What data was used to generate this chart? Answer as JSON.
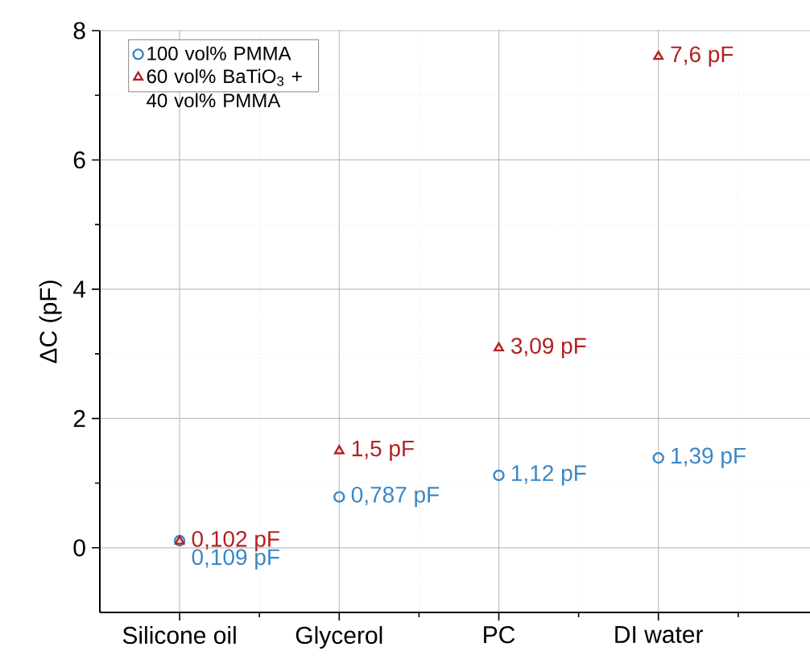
{
  "chart_data": {
    "type": "scatter",
    "ylabel": "ΔC (pF)",
    "categories": [
      "Silicone oil",
      "Glycerol",
      "PC",
      "DI water"
    ],
    "series": [
      {
        "name": "100 vol% PMMA",
        "color": "#3a87c8",
        "marker": "circle",
        "values": [
          0.109,
          0.787,
          1.12,
          1.39
        ],
        "value_labels": [
          "0,109 pF",
          "0,787 pF",
          "1,12 pF",
          "1,39 pF"
        ]
      },
      {
        "name": "60 vol% BaTiO$_{3}$ + 40 vol% PMMA",
        "color": "#b22222",
        "marker": "triangle",
        "values": [
          0.102,
          1.5,
          3.09,
          7.6
        ],
        "value_labels": [
          "0,102 pF",
          "1,5 pF",
          "3,09 pF",
          "7,6 pF"
        ]
      }
    ],
    "ylim": [
      -1,
      8
    ],
    "yticks": [
      0,
      2,
      4,
      6,
      8
    ],
    "grid": true,
    "legend": "top left"
  }
}
